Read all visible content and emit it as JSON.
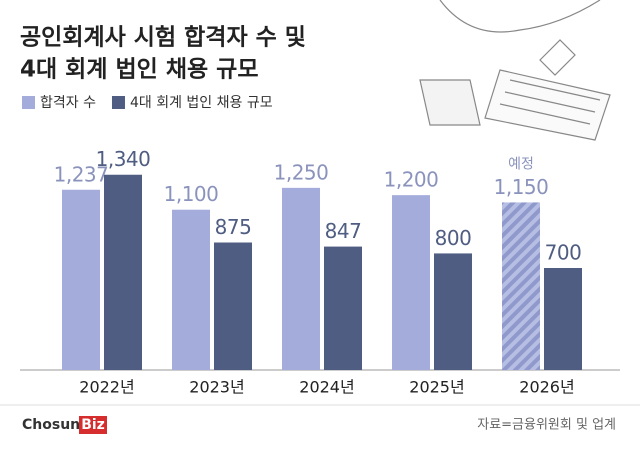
{
  "chart_data": {
    "type": "bar",
    "title": [
      "공인회계사 시험 합격자 수 및",
      "4대 회계 법인 채용 규모"
    ],
    "categories": [
      "2022년",
      "2023년",
      "2024년",
      "2025년",
      "2026년"
    ],
    "series": [
      {
        "name": "합격자 수",
        "color": "#a3acda",
        "label_color": "#8b93bd",
        "values": [
          1237,
          1100,
          1250,
          1200,
          1150
        ],
        "value_labels": [
          "1,237",
          "1,100",
          "1,250",
          "1,200",
          "1,150"
        ]
      },
      {
        "name": "4대 회계 법인 채용 규모",
        "color": "#4f5d82",
        "label_color": "#4f5d82",
        "values": [
          1340,
          875,
          847,
          800,
          700
        ],
        "value_labels": [
          "1,340",
          "875",
          "847",
          "800",
          "700"
        ]
      }
    ],
    "ylim": [
      0,
      1400
    ],
    "annotation": {
      "text": "예정",
      "category": "2026년",
      "series": "합격자 수"
    },
    "source": "자료=금융위원회 및 업계",
    "logo": [
      "Chosun",
      "Biz"
    ]
  }
}
